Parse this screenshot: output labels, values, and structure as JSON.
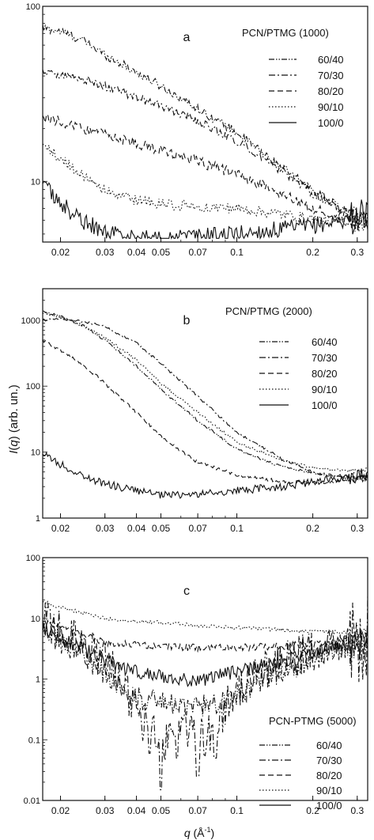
{
  "figure": {
    "ylabel_main": "I",
    "ylabel_paren_open": "(",
    "ylabel_var": "q",
    "ylabel_rest": ") (arb. un.)",
    "xlabel_var": "q",
    "xlabel_paren": " (Å",
    "xlabel_exp": "-1",
    "xlabel_close": ")"
  },
  "chart_data": [
    {
      "type": "line",
      "title": "a",
      "x_scale": "log",
      "y_scale": "log",
      "xlim": [
        0.017,
        0.33
      ],
      "ylim": [
        4.5,
        100
      ],
      "x_ticks": [
        0.02,
        0.03,
        0.04,
        0.05,
        0.07,
        0.1,
        0.2,
        0.3
      ],
      "x_tick_labels": [
        "0.02",
        "0.03",
        "0.04",
        "0.05",
        "0.07",
        "0.1",
        "0.2",
        "0.3"
      ],
      "y_ticks": [
        10,
        100
      ],
      "y_tick_labels": [
        "10",
        "100"
      ],
      "legend_title": "PCN/PTMG  (1000)",
      "legend_position": "right",
      "series": [
        {
          "name": "60/40",
          "style": "dash-dot-dot",
          "x": [
            0.017,
            0.02,
            0.025,
            0.03,
            0.04,
            0.05,
            0.07,
            0.1,
            0.15,
            0.2,
            0.25,
            0.3,
            0.33
          ],
          "y": [
            75,
            72,
            63,
            53,
            42,
            35,
            26,
            19,
            12,
            9,
            7.2,
            6.2,
            6.0
          ],
          "noise": 0.025
        },
        {
          "name": "70/30",
          "style": "dash-dot",
          "x": [
            0.017,
            0.02,
            0.025,
            0.03,
            0.04,
            0.05,
            0.07,
            0.1,
            0.15,
            0.2,
            0.25,
            0.3,
            0.33
          ],
          "y": [
            42,
            41,
            38,
            35,
            30,
            27,
            22,
            17,
            11.5,
            8.5,
            7,
            6.2,
            6.0
          ],
          "noise": 0.025
        },
        {
          "name": "80/20",
          "style": "dash",
          "x": [
            0.017,
            0.02,
            0.025,
            0.03,
            0.04,
            0.05,
            0.07,
            0.1,
            0.15,
            0.2,
            0.25,
            0.3,
            0.33
          ],
          "y": [
            23,
            22,
            20,
            18.5,
            16.5,
            15,
            13,
            11,
            8.5,
            7,
            6.4,
            6.0,
            5.9
          ],
          "noise": 0.03
        },
        {
          "name": "90/10",
          "style": "dot",
          "x": [
            0.017,
            0.02,
            0.025,
            0.03,
            0.04,
            0.05,
            0.07,
            0.1,
            0.15,
            0.2,
            0.25,
            0.3,
            0.33
          ],
          "y": [
            16,
            13.5,
            10.5,
            8.8,
            7.8,
            7.4,
            7.2,
            7.0,
            6.5,
            6.1,
            5.9,
            5.9,
            5.9
          ],
          "noise": 0.03
        },
        {
          "name": "100/0",
          "style": "solid",
          "x": [
            0.017,
            0.02,
            0.025,
            0.03,
            0.035,
            0.04,
            0.05,
            0.06,
            0.07,
            0.08,
            0.1,
            0.15,
            0.2,
            0.25,
            0.3,
            0.33
          ],
          "y": [
            9.5,
            7.5,
            5.8,
            5.2,
            4.9,
            4.8,
            4.7,
            4.8,
            4.85,
            4.9,
            5.0,
            5.3,
            5.6,
            5.9,
            6.3,
            6.5
          ],
          "noise": 0.05
        }
      ]
    },
    {
      "type": "line",
      "title": "b",
      "x_scale": "log",
      "y_scale": "log",
      "xlim": [
        0.017,
        0.33
      ],
      "ylim": [
        1,
        3000
      ],
      "x_ticks": [
        0.02,
        0.03,
        0.04,
        0.05,
        0.07,
        0.1,
        0.2,
        0.3
      ],
      "x_tick_labels": [
        "0.02",
        "0.03",
        "0.04",
        "0.05",
        "0.07",
        "0.1",
        "0.2",
        "0.3"
      ],
      "y_ticks": [
        1,
        10,
        100,
        1000
      ],
      "y_tick_labels": [
        "1",
        "10",
        "100",
        "1000"
      ],
      "legend_title": "PCN/PTMG  (2000)",
      "legend_position": "right",
      "series": [
        {
          "name": "60/40",
          "style": "dash-dot-dot",
          "x": [
            0.017,
            0.02,
            0.025,
            0.03,
            0.04,
            0.05,
            0.07,
            0.1,
            0.15,
            0.2,
            0.25,
            0.3,
            0.33
          ],
          "y": [
            1350,
            1150,
            800,
            500,
            200,
            90,
            30,
            11,
            6,
            4.8,
            4.4,
            4.2,
            4.3
          ],
          "noise": 0.02
        },
        {
          "name": "70/30",
          "style": "dash-dot",
          "x": [
            0.017,
            0.02,
            0.025,
            0.03,
            0.04,
            0.05,
            0.07,
            0.1,
            0.15,
            0.2,
            0.25,
            0.3,
            0.33
          ],
          "y": [
            1000,
            1050,
            950,
            800,
            450,
            220,
            70,
            20,
            8,
            5,
            4.2,
            4.0,
            4.2
          ],
          "noise": 0.02
        },
        {
          "name": "80/20",
          "style": "dash",
          "x": [
            0.017,
            0.02,
            0.025,
            0.03,
            0.04,
            0.05,
            0.07,
            0.1,
            0.15,
            0.2,
            0.25,
            0.3,
            0.33
          ],
          "y": [
            500,
            350,
            200,
            110,
            40,
            17,
            7,
            4.5,
            3.6,
            3.4,
            3.5,
            3.8,
            4.0
          ],
          "noise": 0.025
        },
        {
          "name": "90/10",
          "style": "dot",
          "x": [
            0.017,
            0.02,
            0.025,
            0.03,
            0.04,
            0.05,
            0.07,
            0.1,
            0.15,
            0.2,
            0.25,
            0.3,
            0.33
          ],
          "y": [
            1300,
            1100,
            800,
            550,
            250,
            110,
            40,
            14,
            7.5,
            5.8,
            5.3,
            5.3,
            5.5
          ],
          "noise": 0.02
        },
        {
          "name": "100/0",
          "style": "solid",
          "x": [
            0.017,
            0.02,
            0.025,
            0.03,
            0.04,
            0.05,
            0.07,
            0.1,
            0.15,
            0.2,
            0.25,
            0.3,
            0.33
          ],
          "y": [
            9.5,
            6.5,
            4.2,
            3.3,
            2.6,
            2.2,
            2.3,
            2.6,
            3.0,
            3.5,
            4.0,
            4.5,
            4.8
          ],
          "noise": 0.06
        }
      ]
    },
    {
      "type": "line",
      "title": "c",
      "x_scale": "log",
      "y_scale": "log",
      "xlim": [
        0.017,
        0.33
      ],
      "ylim": [
        0.01,
        100
      ],
      "x_ticks": [
        0.02,
        0.03,
        0.04,
        0.05,
        0.07,
        0.1,
        0.2,
        0.3
      ],
      "x_tick_labels": [
        "0.02",
        "0.03",
        "0.04",
        "0.05",
        "0.07",
        "0.1",
        "0.2",
        "0.3"
      ],
      "y_ticks": [
        0.01,
        0.1,
        1,
        10,
        100
      ],
      "y_tick_labels": [
        "0.01",
        "0.1",
        "1",
        "10",
        "100"
      ],
      "legend_title": "PCN-PTMG (5000)",
      "legend_position": "bottom-right",
      "series": [
        {
          "name": "60/40",
          "style": "dash-dot-dot",
          "x": [
            0.017,
            0.02,
            0.025,
            0.03,
            0.04,
            0.05,
            0.06,
            0.07,
            0.08,
            0.1,
            0.15,
            0.2,
            0.25,
            0.3,
            0.33
          ],
          "y": [
            8,
            5,
            2.5,
            1.2,
            0.5,
            0.4,
            0.35,
            0.35,
            0.4,
            0.6,
            1.3,
            2.2,
            3,
            4,
            4.5
          ],
          "noise": 0.2
        },
        {
          "name": "70/30",
          "style": "dash-dot",
          "x": [
            0.017,
            0.02,
            0.025,
            0.03,
            0.035,
            0.04,
            0.05,
            0.06,
            0.07,
            0.08,
            0.1,
            0.15,
            0.2,
            0.25,
            0.3,
            0.33
          ],
          "y": [
            9,
            6,
            3.5,
            2.0,
            0.8,
            0.3,
            0.08,
            0.2,
            0.1,
            0.15,
            0.7,
            1.8,
            2.8,
            3.5,
            4.3,
            4.8
          ],
          "noise": 0.35,
          "dips": [
            [
              0.05,
              0.015
            ],
            [
              0.07,
              0.025
            ],
            [
              0.045,
              0.06
            ],
            [
              0.058,
              0.05
            ],
            [
              0.082,
              0.05
            ]
          ]
        },
        {
          "name": "80/20",
          "style": "dash",
          "x": [
            0.017,
            0.02,
            0.025,
            0.03,
            0.04,
            0.05,
            0.06,
            0.07,
            0.1,
            0.15,
            0.2,
            0.25,
            0.3,
            0.33
          ],
          "y": [
            9,
            7.5,
            5,
            4,
            3.6,
            3.4,
            3.3,
            3.3,
            3.3,
            3.5,
            3.8,
            4.2,
            4.6,
            5.0
          ],
          "noise": 0.06
        },
        {
          "name": "90/10",
          "style": "dot",
          "x": [
            0.017,
            0.02,
            0.025,
            0.03,
            0.04,
            0.05,
            0.07,
            0.1,
            0.15,
            0.2,
            0.25,
            0.3,
            0.33
          ],
          "y": [
            19,
            15,
            12,
            10,
            9,
            8.5,
            7.6,
            7,
            6.5,
            6.1,
            5.9,
            5.8,
            6.0
          ],
          "noise": 0.03
        },
        {
          "name": "100/0",
          "style": "solid",
          "x": [
            0.017,
            0.02,
            0.025,
            0.03,
            0.04,
            0.05,
            0.06,
            0.07,
            0.08,
            0.1,
            0.15,
            0.2,
            0.25,
            0.3,
            0.33
          ],
          "y": [
            7,
            5,
            3,
            2,
            1.3,
            1.1,
            1.0,
            1.0,
            1.05,
            1.3,
            2.0,
            2.8,
            3.4,
            4.2,
            4.8
          ],
          "noise": 0.12
        }
      ]
    }
  ]
}
